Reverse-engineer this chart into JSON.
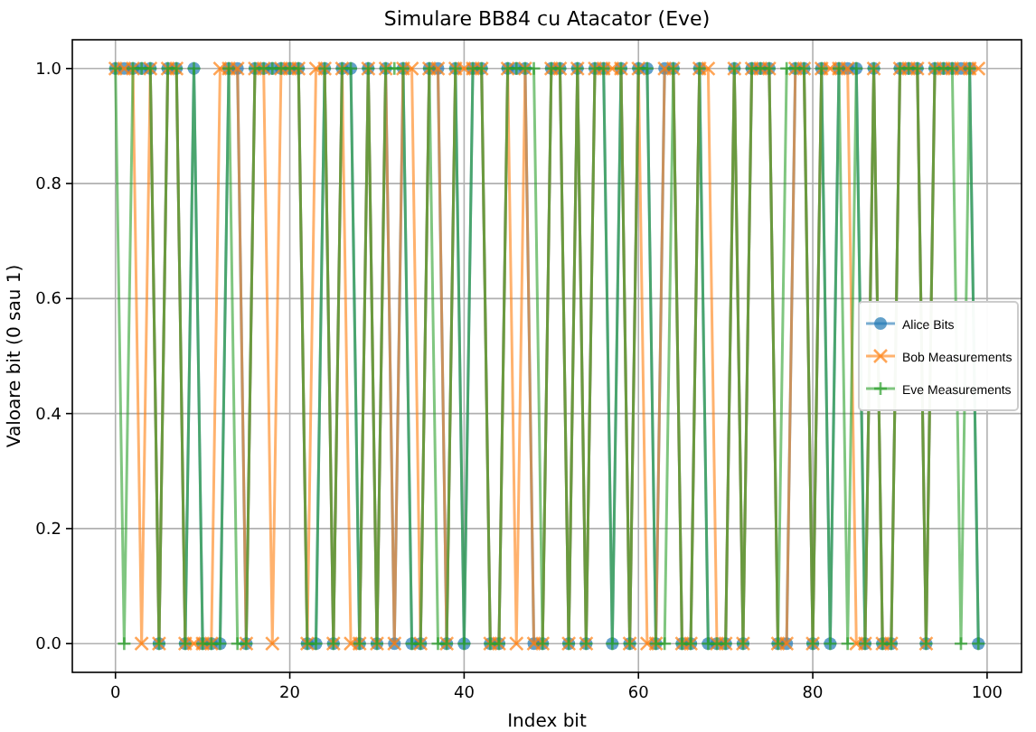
{
  "chart_data": {
    "type": "line",
    "title": "Simulare BB84 cu Atacator (Eve)",
    "xlabel": "Index bit",
    "ylabel": "Valoare bit (0 sau 1)",
    "x": [
      0,
      1,
      2,
      3,
      4,
      5,
      6,
      7,
      8,
      9,
      10,
      11,
      12,
      13,
      14,
      15,
      16,
      17,
      18,
      19,
      20,
      21,
      22,
      23,
      24,
      25,
      26,
      27,
      28,
      29,
      30,
      31,
      32,
      33,
      34,
      35,
      36,
      37,
      38,
      39,
      40,
      41,
      42,
      43,
      44,
      45,
      46,
      47,
      48,
      49,
      50,
      51,
      52,
      53,
      54,
      55,
      56,
      57,
      58,
      59,
      60,
      61,
      62,
      63,
      64,
      65,
      66,
      67,
      68,
      69,
      70,
      71,
      72,
      73,
      74,
      75,
      76,
      77,
      78,
      79,
      80,
      81,
      82,
      83,
      84,
      85,
      86,
      87,
      88,
      89,
      90,
      91,
      92,
      93,
      94,
      95,
      96,
      97,
      98,
      99
    ],
    "xlim": [
      -4.95,
      103.95
    ],
    "xticks": [
      0,
      20,
      40,
      60,
      80,
      100
    ],
    "ylim": [
      -0.05,
      1.05
    ],
    "yticks": [
      {
        "value": 0,
        "label": "0.0"
      },
      0.2,
      0.4,
      0.6,
      0.8,
      {
        "value": 1,
        "label": "1.0"
      }
    ],
    "grid": true,
    "legend": "right",
    "line_style": "solid",
    "series": [
      {
        "name": "Alice Bits",
        "color": "#1f77b4",
        "marker": "circle",
        "values": [
          1,
          1,
          1,
          1,
          1,
          0,
          1,
          1,
          0,
          1,
          0,
          0,
          0,
          1,
          1,
          0,
          1,
          1,
          1,
          1,
          1,
          1,
          0,
          0,
          1,
          0,
          1,
          1,
          0,
          1,
          0,
          1,
          0,
          1,
          0,
          0,
          1,
          1,
          0,
          1,
          0,
          1,
          1,
          0,
          0,
          1,
          1,
          1,
          0,
          0,
          1,
          1,
          0,
          1,
          0,
          1,
          1,
          0,
          1,
          0,
          1,
          1,
          0,
          1,
          1,
          0,
          0,
          1,
          0,
          0,
          0,
          1,
          0,
          1,
          1,
          1,
          0,
          0,
          1,
          1,
          0,
          1,
          0,
          1,
          1,
          1,
          0,
          1,
          0,
          0,
          1,
          1,
          1,
          0,
          1,
          1,
          1,
          1,
          1,
          0
        ]
      },
      {
        "name": "Bob Measurements",
        "color": "#ff7f0e",
        "marker": "cross",
        "values": [
          1,
          1,
          1,
          0,
          1,
          0,
          1,
          1,
          0,
          0,
          0,
          0,
          1,
          1,
          1,
          0,
          1,
          1,
          0,
          1,
          1,
          1,
          0,
          1,
          1,
          0,
          1,
          0,
          0,
          1,
          0,
          1,
          0,
          1,
          1,
          0,
          1,
          1,
          0,
          1,
          1,
          1,
          1,
          0,
          0,
          1,
          0,
          1,
          0,
          0,
          1,
          1,
          0,
          1,
          0,
          1,
          1,
          1,
          1,
          0,
          1,
          0,
          0,
          1,
          1,
          0,
          0,
          1,
          1,
          0,
          0,
          1,
          0,
          1,
          1,
          1,
          0,
          0,
          1,
          1,
          0,
          1,
          1,
          1,
          1,
          0,
          0,
          1,
          0,
          0,
          1,
          1,
          1,
          0,
          1,
          1,
          1,
          1,
          1,
          1
        ]
      },
      {
        "name": "Eve Measurements",
        "color": "#2ca02c",
        "marker": "plus",
        "values": [
          1,
          0,
          1,
          1,
          1,
          0,
          1,
          1,
          0,
          1,
          0,
          0,
          0,
          1,
          0,
          0,
          1,
          1,
          1,
          1,
          1,
          1,
          0,
          0,
          1,
          0,
          1,
          1,
          0,
          1,
          0,
          1,
          1,
          1,
          0,
          0,
          1,
          0,
          0,
          1,
          0,
          1,
          1,
          0,
          0,
          1,
          1,
          1,
          1,
          0,
          1,
          1,
          0,
          1,
          0,
          1,
          1,
          0,
          1,
          0,
          1,
          1,
          0,
          0,
          1,
          0,
          0,
          1,
          0,
          0,
          0,
          1,
          0,
          1,
          1,
          1,
          0,
          1,
          1,
          1,
          0,
          1,
          0,
          1,
          0,
          1,
          0,
          1,
          0,
          0,
          1,
          1,
          1,
          0,
          1,
          1,
          1,
          0,
          1,
          0
        ]
      }
    ]
  }
}
